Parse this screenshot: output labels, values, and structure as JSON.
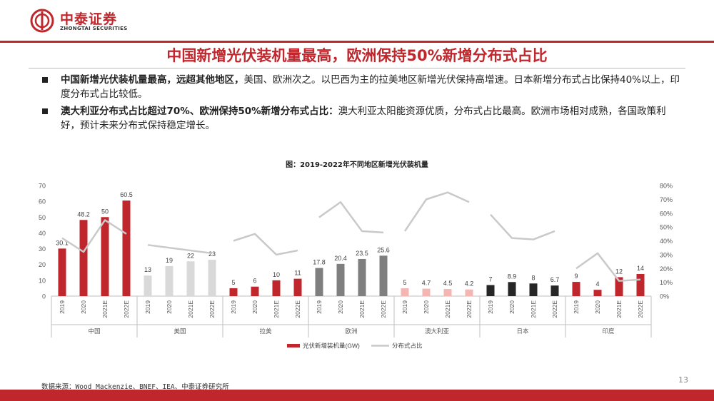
{
  "header": {
    "brand_cn": "中泰证券",
    "brand_en": "ZHONGTAI SECURITIES",
    "accent": "#c0272d"
  },
  "slide_title": "中国新增光伏装机量最高，欧洲保持50%新增分布式占比",
  "bullets": [
    {
      "bold": "中国新增光伏装机量最高，远超其他地区，",
      "text": "美国、欧洲次之。以巴西为主的拉美地区新增光伏保持高增速。日本新增分布式占比保持40%以上，印度分布式占比较低。"
    },
    {
      "bold": "澳大利亚分布式占比超过70%、欧洲保持50%新增分布式占比：",
      "text": "澳大利亚太阳能资源优质，分布式占比最高。欧洲市场相对成熟，各国政策利好，预计未来分布式保持稳定增长。"
    }
  ],
  "chart_title": "图：2019-2022年不同地区新增光伏装机量",
  "chart_data": {
    "type": "bar",
    "years": [
      "2019",
      "2020",
      "2021E",
      "2022E"
    ],
    "groups": [
      {
        "region": "中国",
        "color": "#c0272d",
        "values": [
          30.1,
          48.2,
          50,
          60.5
        ],
        "labels": [
          "30.1",
          "48.2",
          "50",
          "60.5"
        ],
        "share": [
          42,
          32,
          55,
          45
        ]
      },
      {
        "region": "美国",
        "color": "#d9d9d9",
        "values": [
          13,
          19,
          22,
          23
        ],
        "labels": [
          "13",
          "19",
          "22",
          "23"
        ],
        "share": [
          37,
          35,
          33,
          31
        ]
      },
      {
        "region": "拉美",
        "color": "#c0272d",
        "values": [
          5,
          6,
          10,
          11
        ],
        "labels": [
          "5",
          "6",
          "10",
          "11"
        ],
        "share": [
          40,
          45,
          30,
          33
        ]
      },
      {
        "region": "欧洲",
        "color": "#7f7f7f",
        "values": [
          17.8,
          20.4,
          23.5,
          25.6
        ],
        "labels": [
          "17.8",
          "20.4",
          "23.5",
          "25.6"
        ],
        "share": [
          57,
          68,
          47,
          46
        ]
      },
      {
        "region": "澳大利亚",
        "color": "#f4b6b3",
        "values": [
          5,
          4.7,
          4.5,
          4.2
        ],
        "labels": [
          "5",
          "4.7",
          "4.5",
          "4.2"
        ],
        "share": [
          47,
          70,
          75,
          68
        ]
      },
      {
        "region": "日本",
        "color": "#262626",
        "values": [
          7,
          8.9,
          8,
          6.7
        ],
        "labels": [
          "7",
          "8.9",
          "8",
          "6.7"
        ],
        "share": [
          59,
          42,
          41,
          47
        ]
      },
      {
        "region": "印度",
        "color": "#c0272d",
        "values": [
          9,
          4,
          12,
          14
        ],
        "labels": [
          "9",
          "4",
          "12",
          "14"
        ],
        "share": [
          20,
          31,
          11,
          12
        ]
      }
    ],
    "y_left": {
      "min": 0,
      "max": 70,
      "ticks": [
        "0",
        "10",
        "20",
        "30",
        "40",
        "50",
        "60",
        "70"
      ]
    },
    "y_right": {
      "min": 0,
      "max": 80,
      "ticks": [
        "0%",
        "10%",
        "20%",
        "30%",
        "40%",
        "50%",
        "60%",
        "70%",
        "80%"
      ]
    },
    "legend": {
      "bar": "光伏新增装机量(GW)",
      "line": "分布式占比",
      "position": "bottom"
    },
    "line_color": "#c9c9c9"
  },
  "source": "数据来源：Wood Mackenzie、BNEF、IEA、中泰证券研究所",
  "page_number": "13"
}
